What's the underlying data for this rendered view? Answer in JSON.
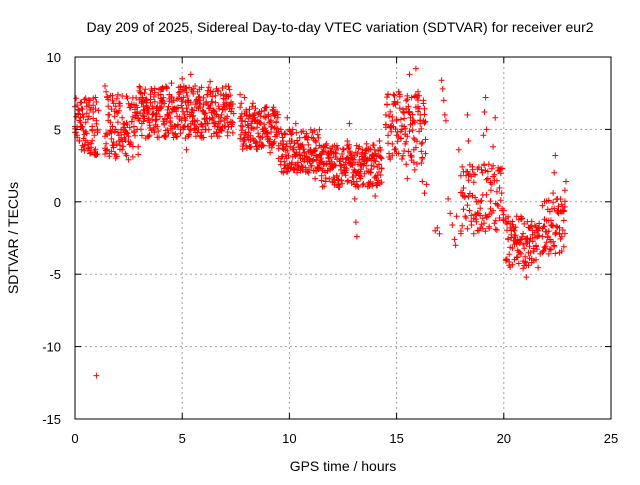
{
  "chart_data": {
    "type": "scatter",
    "title": "Day 209 of 2025, Sidereal Day-to-day VTEC variation (SDTVAR) for receiver eur2",
    "xlabel": "GPS time / hours",
    "ylabel": "SDTVAR / TECUs",
    "xlim": [
      0,
      25
    ],
    "ylim": [
      -15,
      10
    ],
    "xticks": [
      0,
      5,
      10,
      15,
      20,
      25
    ],
    "yticks": [
      -15,
      -10,
      -5,
      0,
      5,
      10
    ],
    "xtick_labels": [
      "0",
      "5",
      "10",
      "15",
      "20",
      "25"
    ],
    "ytick_labels": [
      "-15",
      "-10",
      "-5",
      "0",
      "5",
      "10"
    ],
    "grid": true,
    "marker": "+",
    "color": "#ff0000",
    "series": [
      {
        "name": "SDTVAR",
        "points": [
          [
            0.0,
            5.2
          ],
          [
            0.1,
            4.6
          ],
          [
            0.15,
            6.1
          ],
          [
            0.2,
            4.2
          ],
          [
            0.25,
            5.8
          ],
          [
            0.3,
            3.6
          ],
          [
            0.35,
            6.4
          ],
          [
            0.4,
            4.9
          ],
          [
            0.45,
            3.9
          ],
          [
            0.5,
            5.5
          ],
          [
            0.55,
            6.6
          ],
          [
            0.6,
            4.1
          ],
          [
            0.65,
            5.9
          ],
          [
            0.7,
            7.0
          ],
          [
            0.75,
            3.4
          ],
          [
            0.8,
            5.2
          ],
          [
            0.85,
            6.2
          ],
          [
            0.9,
            4.6
          ],
          [
            0.95,
            7.2
          ],
          [
            1.0,
            5.6
          ],
          [
            1.05,
            4.8
          ],
          [
            1.1,
            6.3
          ],
          [
            1.0,
            -12.0
          ],
          [
            1.4,
            8.0
          ],
          [
            1.45,
            7.6
          ],
          [
            1.5,
            7.2
          ],
          [
            1.55,
            6.6
          ],
          [
            1.6,
            6.0
          ],
          [
            1.65,
            5.5
          ],
          [
            1.7,
            6.4
          ],
          [
            1.75,
            5.2
          ],
          [
            1.8,
            6.8
          ],
          [
            1.85,
            5.9
          ],
          [
            1.9,
            5.0
          ],
          [
            1.95,
            6.2
          ],
          [
            2.0,
            5.5
          ],
          [
            2.05,
            4.2
          ],
          [
            2.1,
            3.9
          ],
          [
            2.15,
            4.8
          ],
          [
            2.2,
            3.6
          ],
          [
            2.3,
            4.4
          ],
          [
            2.4,
            3.2
          ],
          [
            2.5,
            2.9
          ],
          [
            2.6,
            4.0
          ],
          [
            2.7,
            3.1
          ],
          [
            2.75,
            5.2
          ],
          [
            2.8,
            5.8
          ],
          [
            2.9,
            5.0
          ],
          [
            2.95,
            3.8
          ],
          [
            3.0,
            5.6
          ],
          [
            3.1,
            6.8
          ],
          [
            3.15,
            7.2
          ],
          [
            3.2,
            5.9
          ],
          [
            3.3,
            4.4
          ],
          [
            3.4,
            6.2
          ],
          [
            3.5,
            5.1
          ],
          [
            3.6,
            6.6
          ],
          [
            3.7,
            4.8
          ],
          [
            3.8,
            5.7
          ],
          [
            3.9,
            6.3
          ],
          [
            4.0,
            7.8
          ],
          [
            4.1,
            6.9
          ],
          [
            4.15,
            5.4
          ],
          [
            4.2,
            4.6
          ],
          [
            4.3,
            6.0
          ],
          [
            4.4,
            7.4
          ],
          [
            4.5,
            8.2
          ],
          [
            4.6,
            7.0
          ],
          [
            4.7,
            6.4
          ],
          [
            4.8,
            5.3
          ],
          [
            4.9,
            7.6
          ],
          [
            5.0,
            8.5
          ],
          [
            5.05,
            7.2
          ],
          [
            5.1,
            6.0
          ],
          [
            5.15,
            4.4
          ],
          [
            5.2,
            3.6
          ],
          [
            5.25,
            5.2
          ],
          [
            5.3,
            7.0
          ],
          [
            5.4,
            8.8
          ],
          [
            5.5,
            7.6
          ],
          [
            5.55,
            6.3
          ],
          [
            5.6,
            8.0
          ],
          [
            5.7,
            5.6
          ],
          [
            5.8,
            6.8
          ],
          [
            5.9,
            7.9
          ],
          [
            6.0,
            6.2
          ],
          [
            6.1,
            5.0
          ],
          [
            6.2,
            7.4
          ],
          [
            6.3,
            8.3
          ],
          [
            6.4,
            6.9
          ],
          [
            6.5,
            5.4
          ],
          [
            6.6,
            7.8
          ],
          [
            6.7,
            6.6
          ],
          [
            6.8,
            5.8
          ],
          [
            6.9,
            6.4
          ],
          [
            7.0,
            7.1
          ],
          [
            7.1,
            5.9
          ],
          [
            7.2,
            6.6
          ],
          [
            7.3,
            5.2
          ],
          [
            7.4,
            6.1
          ],
          [
            7.7,
            7.4
          ],
          [
            7.75,
            6.8
          ],
          [
            7.8,
            5.6
          ],
          [
            7.9,
            7.2
          ],
          [
            8.0,
            6.2
          ],
          [
            8.1,
            4.8
          ],
          [
            8.2,
            5.9
          ],
          [
            8.3,
            6.8
          ],
          [
            8.4,
            4.2
          ],
          [
            8.5,
            5.4
          ],
          [
            8.6,
            6.2
          ],
          [
            8.7,
            3.8
          ],
          [
            8.8,
            5.0
          ],
          [
            8.9,
            5.9
          ],
          [
            9.0,
            4.4
          ],
          [
            9.1,
            3.4
          ],
          [
            9.2,
            5.2
          ],
          [
            9.3,
            6.0
          ],
          [
            9.4,
            4.8
          ],
          [
            9.5,
            3.0
          ],
          [
            9.6,
            5.0
          ],
          [
            9.7,
            4.2
          ],
          [
            9.8,
            3.6
          ],
          [
            9.9,
            5.8
          ],
          [
            10.0,
            4.2
          ],
          [
            10.1,
            2.6
          ],
          [
            10.2,
            3.6
          ],
          [
            10.3,
            5.4
          ],
          [
            10.4,
            4.0
          ],
          [
            10.5,
            3.2
          ],
          [
            10.6,
            2.4
          ],
          [
            10.7,
            3.4
          ],
          [
            10.8,
            4.5
          ],
          [
            10.9,
            2.0
          ],
          [
            11.0,
            3.6
          ],
          [
            11.1,
            2.8
          ],
          [
            11.2,
            1.6
          ],
          [
            11.3,
            2.4
          ],
          [
            11.4,
            3.2
          ],
          [
            11.5,
            1.8
          ],
          [
            11.6,
            2.6
          ],
          [
            11.7,
            1.4
          ],
          [
            11.8,
            3.4
          ],
          [
            11.9,
            2.2
          ],
          [
            12.0,
            3.8
          ],
          [
            12.1,
            2.6
          ],
          [
            12.2,
            1.8
          ],
          [
            12.3,
            1.2
          ],
          [
            12.4,
            2.2
          ],
          [
            12.5,
            3.0
          ],
          [
            12.6,
            2.0
          ],
          [
            12.7,
            4.2
          ],
          [
            12.8,
            5.4
          ],
          [
            12.9,
            3.2
          ],
          [
            13.0,
            1.4
          ],
          [
            13.05,
            0.2
          ],
          [
            13.1,
            -1.4
          ],
          [
            13.15,
            -2.4
          ],
          [
            13.2,
            2.6
          ],
          [
            13.3,
            1.6
          ],
          [
            13.4,
            3.4
          ],
          [
            13.5,
            2.8
          ],
          [
            13.6,
            4.0
          ],
          [
            13.7,
            3.6
          ],
          [
            13.8,
            2.0
          ],
          [
            13.9,
            3.2
          ],
          [
            14.0,
            0.4
          ],
          [
            14.1,
            2.4
          ],
          [
            14.2,
            4.2
          ],
          [
            14.3,
            3.0
          ],
          [
            14.5,
            6.0
          ],
          [
            14.6,
            7.4
          ],
          [
            14.7,
            5.2
          ],
          [
            14.8,
            4.0
          ],
          [
            14.9,
            6.8
          ],
          [
            15.0,
            5.6
          ],
          [
            15.1,
            7.6
          ],
          [
            15.2,
            4.4
          ],
          [
            15.3,
            6.2
          ],
          [
            15.35,
            5.2
          ],
          [
            15.4,
            4.0
          ],
          [
            15.45,
            2.6
          ],
          [
            15.5,
            1.6
          ],
          [
            15.6,
            8.8
          ],
          [
            15.7,
            7.2
          ],
          [
            15.75,
            5.4
          ],
          [
            15.8,
            3.6
          ],
          [
            15.85,
            2.2
          ],
          [
            15.9,
            9.2
          ],
          [
            16.0,
            7.6
          ],
          [
            16.1,
            6.0
          ],
          [
            16.15,
            4.0
          ],
          [
            16.2,
            1.4
          ],
          [
            16.3,
            0.6
          ],
          [
            16.4,
            1.2
          ],
          [
            16.8,
            -2.0
          ],
          [
            16.9,
            -1.8
          ],
          [
            17.0,
            -2.2
          ],
          [
            17.1,
            8.4
          ],
          [
            17.15,
            7.8
          ],
          [
            17.2,
            7.0
          ],
          [
            17.25,
            6.0
          ],
          [
            17.3,
            5.6
          ],
          [
            17.4,
            0.2
          ],
          [
            17.5,
            -0.8
          ],
          [
            17.6,
            -1.6
          ],
          [
            17.7,
            -2.6
          ],
          [
            17.75,
            -3.0
          ],
          [
            17.8,
            -1.0
          ],
          [
            17.9,
            3.6
          ],
          [
            18.0,
            1.8
          ],
          [
            18.1,
            0.4
          ],
          [
            18.2,
            -1.0
          ],
          [
            18.3,
            6.0
          ],
          [
            18.35,
            4.2
          ],
          [
            18.4,
            -0.6
          ],
          [
            18.5,
            -1.6
          ],
          [
            18.6,
            -2.2
          ],
          [
            18.7,
            -1.2
          ],
          [
            18.8,
            0.0
          ],
          [
            18.9,
            -1.8
          ],
          [
            19.0,
            2.0
          ],
          [
            19.05,
            4.6
          ],
          [
            19.1,
            6.2
          ],
          [
            19.15,
            7.2
          ],
          [
            19.2,
            5.0
          ],
          [
            19.3,
            2.6
          ],
          [
            19.4,
            0.8
          ],
          [
            19.5,
            3.8
          ],
          [
            19.6,
            5.8
          ],
          [
            19.7,
            -0.2
          ],
          [
            19.8,
            2.2
          ],
          [
            19.9,
            0.6
          ],
          [
            20.0,
            -0.6
          ],
          [
            20.1,
            -1.4
          ],
          [
            20.2,
            -2.6
          ],
          [
            20.3,
            -1.8
          ],
          [
            20.4,
            -3.2
          ],
          [
            20.5,
            -2.0
          ],
          [
            20.6,
            -1.0
          ],
          [
            20.7,
            -2.8
          ],
          [
            20.8,
            -3.6
          ],
          [
            20.9,
            -4.6
          ],
          [
            21.0,
            -3.8
          ],
          [
            21.05,
            -5.2
          ],
          [
            21.1,
            -2.6
          ],
          [
            21.2,
            -1.8
          ],
          [
            21.3,
            -4.2
          ],
          [
            21.4,
            -3.4
          ],
          [
            21.5,
            -4.0
          ],
          [
            21.6,
            -2.0
          ],
          [
            21.7,
            -3.6
          ],
          [
            21.8,
            -2.4
          ],
          [
            21.9,
            -1.2
          ],
          [
            22.0,
            -2.8
          ],
          [
            22.1,
            -3.6
          ],
          [
            22.2,
            -1.6
          ],
          [
            22.3,
            0.6
          ],
          [
            22.35,
            2.0
          ],
          [
            22.4,
            3.2
          ],
          [
            22.5,
            0.2
          ],
          [
            22.6,
            -1.8
          ],
          [
            22.7,
            -3.4
          ],
          [
            22.8,
            -0.6
          ],
          [
            22.85,
            0.8
          ],
          [
            22.9,
            1.4
          ]
        ]
      }
    ],
    "dense_bands": [
      {
        "x": [
          0.0,
          1.1
        ],
        "y": [
          3.2,
          7.2
        ],
        "step": 0.05
      },
      {
        "x": [
          1.4,
          2.95
        ],
        "y": [
          3.0,
          7.4
        ],
        "step": 0.05
      },
      {
        "x": [
          3.0,
          7.4
        ],
        "y": [
          4.4,
          8.0
        ],
        "step": 0.04
      },
      {
        "x": [
          7.7,
          9.5
        ],
        "y": [
          3.6,
          6.6
        ],
        "step": 0.04
      },
      {
        "x": [
          9.6,
          11.5
        ],
        "y": [
          2.0,
          5.0
        ],
        "step": 0.04
      },
      {
        "x": [
          11.5,
          14.3
        ],
        "y": [
          1.0,
          4.0
        ],
        "step": 0.04
      },
      {
        "x": [
          14.5,
          16.4
        ],
        "y": [
          2.6,
          7.6
        ],
        "step": 0.05
      },
      {
        "x": [
          18.0,
          20.0
        ],
        "y": [
          -2.2,
          2.6
        ],
        "step": 0.06
      },
      {
        "x": [
          20.1,
          21.7
        ],
        "y": [
          -4.6,
          -1.0
        ],
        "step": 0.05
      },
      {
        "x": [
          21.8,
          22.9
        ],
        "y": [
          -3.6,
          0.2
        ],
        "step": 0.05
      }
    ]
  }
}
